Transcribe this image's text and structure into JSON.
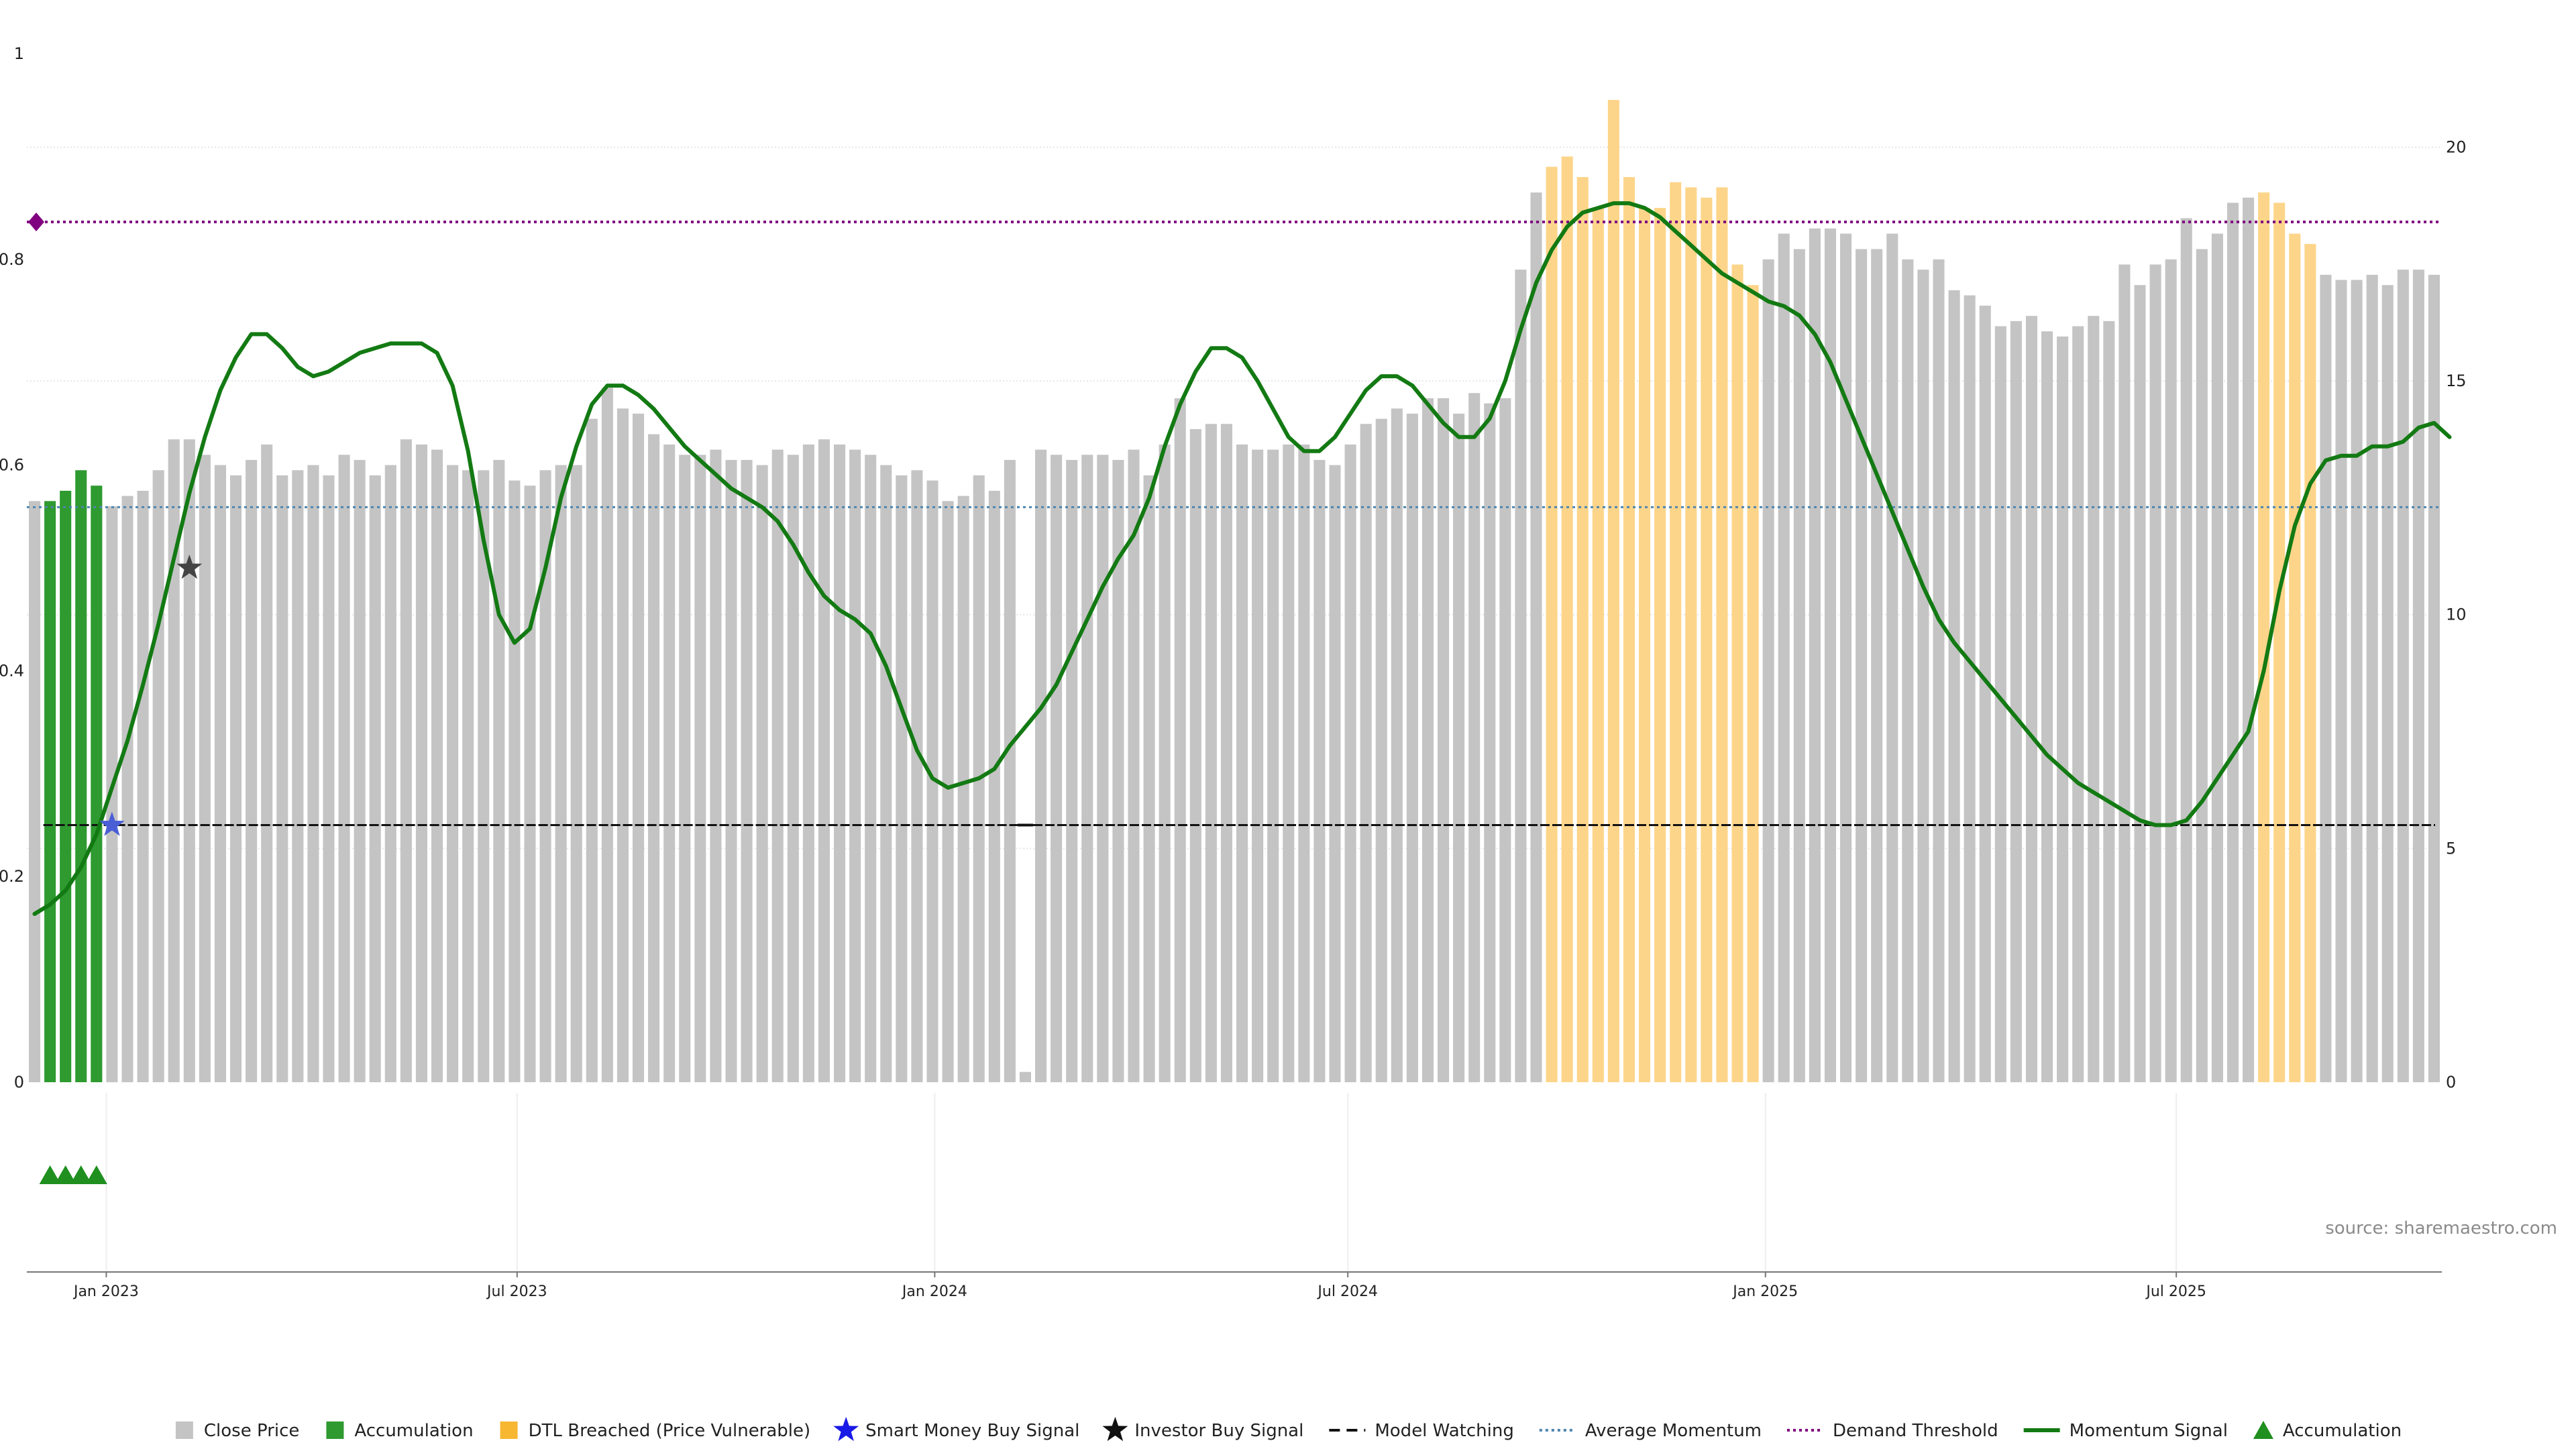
{
  "chart_data": {
    "type": "bar",
    "source": "source: sharemaestro.com",
    "left_axis": {
      "range": [
        0,
        1
      ],
      "ticks": [
        "0",
        "0.2",
        "0.4",
        "0.6",
        "0.8",
        "1"
      ],
      "tick_values": [
        0,
        0.2,
        0.4,
        0.6,
        0.8,
        1
      ]
    },
    "right_axis": {
      "range": [
        0,
        22
      ],
      "ticks": [
        "0",
        "5",
        "10",
        "15",
        "20"
      ],
      "tick_values": [
        0,
        5,
        10,
        15,
        20
      ]
    },
    "date_axis": {
      "start": "2022-11-27",
      "end": "2025-10-26",
      "labels": [
        {
          "date": "2023-01-01",
          "text": "Jan 2023"
        },
        {
          "date": "2023-07-01",
          "text": "Jul 2023"
        },
        {
          "date": "2024-01-01",
          "text": "Jan 2024"
        },
        {
          "date": "2024-07-01",
          "text": "Jul 2024"
        },
        {
          "date": "2025-01-01",
          "text": "Jan 2025"
        },
        {
          "date": "2025-07-01",
          "text": "Jul 2025"
        }
      ]
    },
    "grid": true,
    "legend_position": "bottom",
    "legend": [
      {
        "label": "Close Price",
        "marker": "square",
        "color": "#c4c4c4"
      },
      {
        "label": "Accumulation",
        "marker": "square",
        "color": "#2e9a30"
      },
      {
        "label": "DTL Breached (Price Vulnerable)",
        "marker": "square",
        "color": "#f7b731"
      },
      {
        "label": "Smart Money Buy Signal",
        "marker": "star",
        "color": "#1a1ae6"
      },
      {
        "label": "Investor Buy Signal",
        "marker": "star",
        "color": "#111111"
      },
      {
        "label": "Model Watching",
        "marker": "dash",
        "color": "#111111"
      },
      {
        "label": "Average Momentum",
        "marker": "dotted",
        "color": "#4f86b0"
      },
      {
        "label": "Demand Threshold",
        "marker": "dotted",
        "color": "#800080"
      },
      {
        "label": "Momentum Signal",
        "marker": "line",
        "color": "#137a13"
      },
      {
        "label": "Accumulation",
        "marker": "triangle",
        "color": "#1f8f1f"
      }
    ],
    "colors": {
      "close": "#c4c4c4",
      "accumulation": "#2e9a30",
      "dtl": "#fdd58a",
      "momentum": "#137a13",
      "average_momentum": "#4f86b0",
      "demand_threshold": "#800080",
      "model_watching": "#111111",
      "smart_money": "#4a5fd6",
      "investor": "#444444",
      "triangles": "#1f8f1f"
    },
    "close_price": {
      "values": [
        0.565,
        0.565,
        0.575,
        0.595,
        0.58,
        0.56,
        0.57,
        0.575,
        0.595,
        0.625,
        0.625,
        0.61,
        0.6,
        0.59,
        0.605,
        0.62,
        0.59,
        0.595,
        0.6,
        0.59,
        0.61,
        0.605,
        0.59,
        0.6,
        0.625,
        0.62,
        0.615,
        0.6,
        0.595,
        0.595,
        0.605,
        0.585,
        0.58,
        0.595,
        0.6,
        0.6,
        0.645,
        0.675,
        0.655,
        0.65,
        0.63,
        0.62,
        0.61,
        0.61,
        0.615,
        0.605,
        0.605,
        0.6,
        0.615,
        0.61,
        0.62,
        0.625,
        0.62,
        0.615,
        0.61,
        0.6,
        0.59,
        0.595,
        0.585,
        0.565,
        0.57,
        0.59,
        0.575,
        0.605,
        0.01,
        0.615,
        0.61,
        0.605,
        0.61,
        0.61,
        0.605,
        0.615,
        0.59,
        0.62,
        0.665,
        0.635,
        0.64,
        0.64,
        0.62,
        0.615,
        0.615,
        0.62,
        0.62,
        0.605,
        0.6,
        0.62,
        0.64,
        0.645,
        0.655,
        0.65,
        0.665,
        0.665,
        0.65,
        0.67,
        0.66,
        0.665,
        0.79,
        0.865,
        0.89,
        0.9,
        0.88,
        0.85,
        0.955,
        0.88,
        0.85,
        0.85,
        0.875,
        0.87,
        0.86,
        0.87,
        0.795,
        0.775,
        0.8,
        0.825,
        0.81,
        0.83,
        0.83,
        0.825,
        0.81,
        0.81,
        0.825,
        0.8,
        0.79,
        0.8,
        0.77,
        0.765,
        0.755,
        0.735,
        0.74,
        0.745,
        0.73,
        0.725,
        0.735,
        0.745,
        0.74,
        0.795,
        0.775,
        0.795,
        0.8,
        0.84,
        0.81,
        0.825,
        0.855,
        0.86,
        0.865,
        0.855,
        0.825,
        0.815,
        0.785,
        0.78,
        0.78,
        0.785,
        0.775,
        0.79,
        0.79,
        0.785
      ],
      "accumulation_bars": [
        1,
        2,
        3,
        4
      ],
      "dtl_bars": [
        98,
        99,
        100,
        101,
        102,
        103,
        104,
        105,
        106,
        107,
        108,
        109,
        110,
        111,
        144,
        145,
        146,
        147
      ]
    },
    "momentum_signal": {
      "values": [
        3.6,
        3.8,
        4.1,
        4.6,
        5.3,
        6.3,
        7.3,
        8.5,
        9.8,
        11.2,
        12.6,
        13.8,
        14.8,
        15.5,
        16.0,
        16.0,
        15.7,
        15.3,
        15.1,
        15.2,
        15.4,
        15.6,
        15.7,
        15.8,
        15.8,
        15.8,
        15.6,
        14.9,
        13.5,
        11.6,
        10.0,
        9.4,
        9.7,
        11.0,
        12.5,
        13.6,
        14.5,
        14.9,
        14.9,
        14.7,
        14.4,
        14.0,
        13.6,
        13.3,
        13.0,
        12.7,
        12.5,
        12.3,
        12.0,
        11.5,
        10.9,
        10.4,
        10.1,
        9.9,
        9.6,
        8.9,
        8.0,
        7.1,
        6.5,
        6.3,
        6.4,
        6.5,
        6.7,
        7.2,
        7.6,
        8.0,
        8.5,
        9.2,
        9.9,
        10.6,
        11.2,
        11.7,
        12.5,
        13.6,
        14.5,
        15.2,
        15.7,
        15.7,
        15.5,
        15.0,
        14.4,
        13.8,
        13.5,
        13.5,
        13.8,
        14.3,
        14.8,
        15.1,
        15.1,
        14.9,
        14.5,
        14.1,
        13.8,
        13.8,
        14.2,
        15.0,
        16.1,
        17.1,
        17.8,
        18.3,
        18.6,
        18.7,
        18.8,
        18.8,
        18.7,
        18.5,
        18.2,
        17.9,
        17.6,
        17.3,
        17.1,
        16.9,
        16.7,
        16.6,
        16.4,
        16.0,
        15.4,
        14.6,
        13.8,
        13.0,
        12.2,
        11.4,
        10.6,
        9.9,
        9.4,
        9.0,
        8.6,
        8.2,
        7.8,
        7.4,
        7.0,
        6.7,
        6.4,
        6.2,
        6.0,
        5.8,
        5.6,
        5.5,
        5.5,
        5.6,
        6.0,
        6.5,
        7.0,
        7.5,
        8.8,
        10.5,
        11.9,
        12.8,
        13.3,
        13.4,
        13.4,
        13.6,
        13.6,
        13.7,
        14.0,
        14.1,
        13.8
      ]
    },
    "average_momentum": 12.3,
    "demand_threshold": 18.4,
    "model_watching": {
      "value": 5.5,
      "gap_bar": 64
    },
    "smart_money_buy_signal": {
      "bar": 5,
      "value": 5.5
    },
    "investor_buy_signal": {
      "bar": 10,
      "value": 11.0
    },
    "accumulation_triangles": [
      1,
      2,
      3,
      4
    ]
  }
}
